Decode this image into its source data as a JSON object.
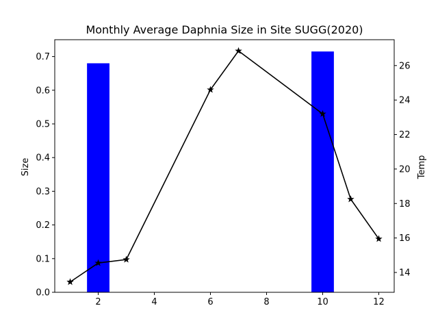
{
  "chart_data": {
    "type": "bar+line",
    "title": "Monthly Average Daphnia Size in Site SUGG(2020)",
    "xlabel": "",
    "ylabel": "Size",
    "ylabel_right": "Temp",
    "xlim": [
      0.45,
      12.55
    ],
    "ylim": [
      0,
      0.75
    ],
    "ylim_right": [
      12.85,
      27.5
    ],
    "x_ticks": [
      2,
      4,
      6,
      8,
      10,
      12
    ],
    "y_ticks": [
      0.0,
      0.1,
      0.2,
      0.3,
      0.4,
      0.5,
      0.6,
      0.7
    ],
    "y_ticks_right": [
      14,
      16,
      18,
      20,
      22,
      24,
      26
    ],
    "grid": false,
    "bar_color": "#0000ff",
    "line_color": "#000000",
    "bars": {
      "axis": "left",
      "x": [
        2,
        10
      ],
      "values": [
        0.68,
        0.715
      ],
      "width": 0.8
    },
    "line": {
      "axis": "right",
      "marker": "star",
      "x": [
        1,
        2,
        3,
        6,
        7,
        10,
        11,
        12
      ],
      "values": [
        13.45,
        14.55,
        14.75,
        24.6,
        26.85,
        23.2,
        18.25,
        15.95
      ]
    }
  }
}
